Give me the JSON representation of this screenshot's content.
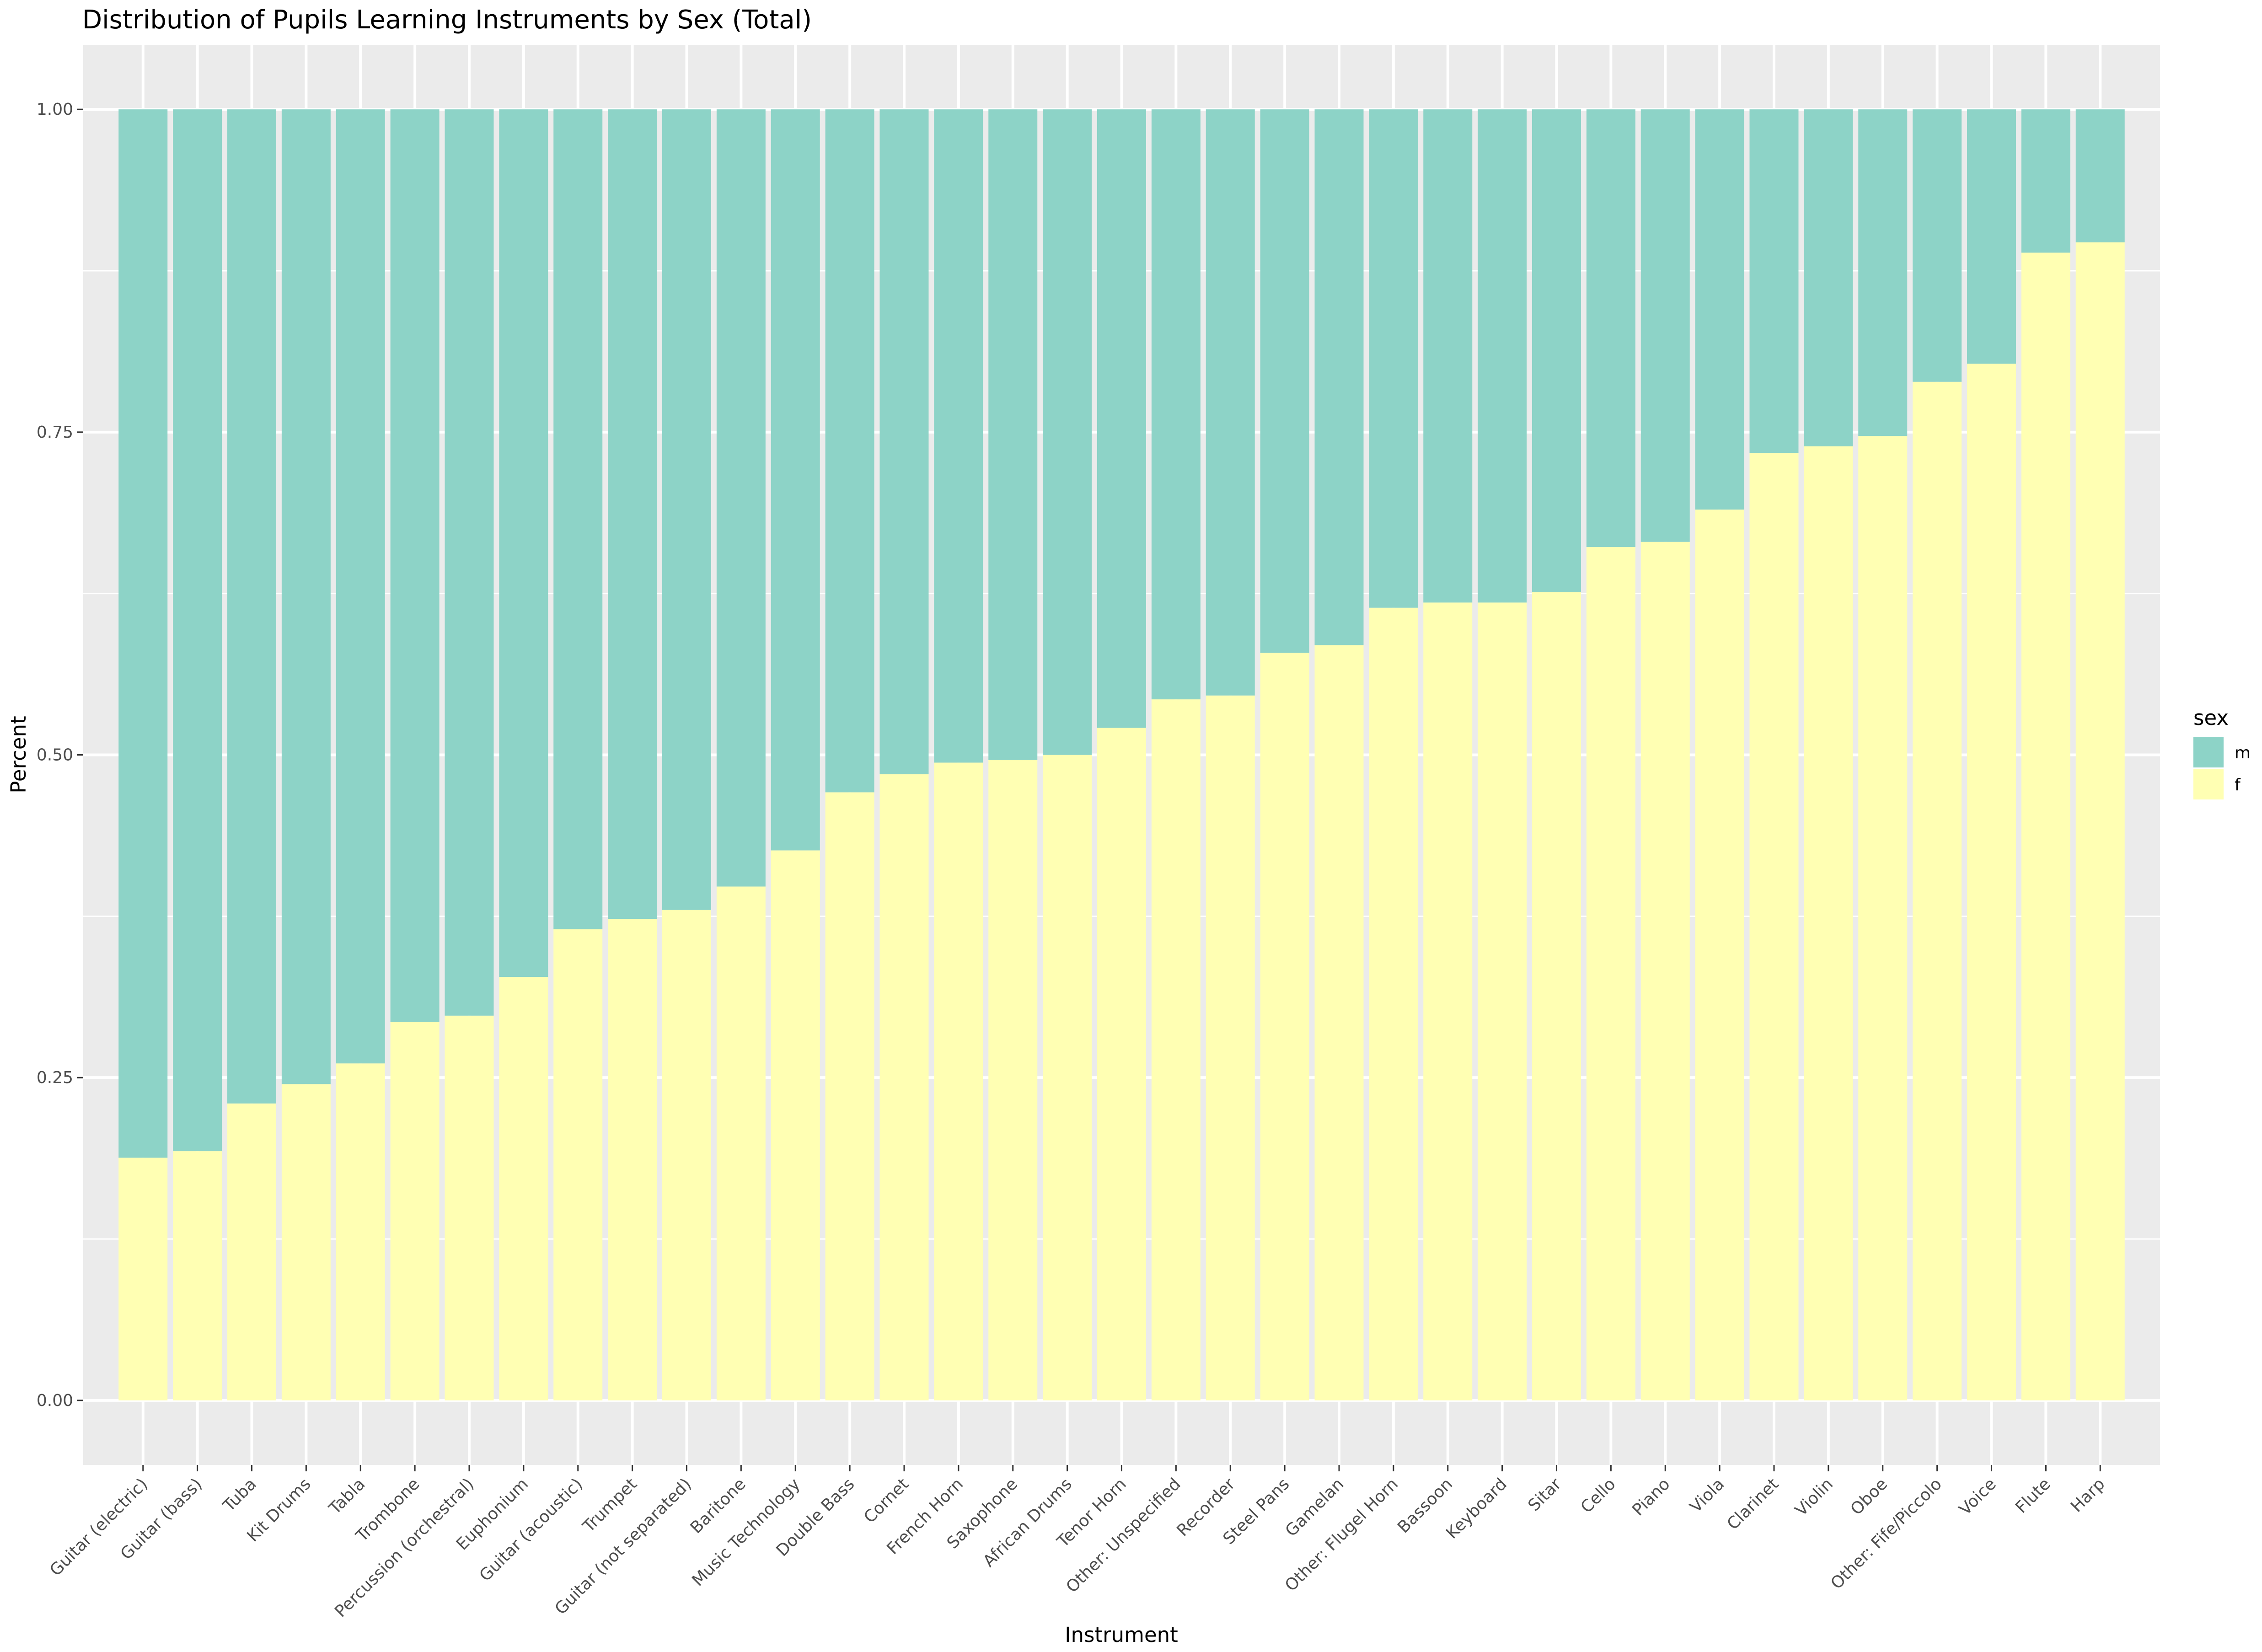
{
  "chart_data": {
    "type": "bar",
    "stacked": true,
    "title": "Distribution of Pupils Learning Instruments by Sex (Total)",
    "xlabel": "Instrument",
    "ylabel": "Percent",
    "ylim": [
      -0.05,
      1.05
    ],
    "yticks": [
      0.0,
      0.25,
      0.5,
      0.75,
      1.0
    ],
    "ytick_labels": [
      "0.00",
      "0.25",
      "0.50",
      "0.75",
      "1.00"
    ],
    "grid": true,
    "legend": {
      "title": "sex",
      "placement": "right",
      "entries": [
        "m",
        "f"
      ]
    },
    "colors": {
      "m": "#8dd3c7",
      "f": "#ffffb3",
      "panel": "#ebebeb",
      "grid": "#ffffff"
    },
    "categories": [
      "Guitar (electric)",
      "Guitar (bass)",
      "Tuba",
      "Kit Drums",
      "Tabla",
      "Trombone",
      "Percussion (orchestral)",
      "Euphonium",
      "Guitar (acoustic)",
      "Trumpet",
      "Guitar (not separated)",
      "Baritone",
      "Music Technology",
      "Double Bass",
      "Cornet",
      "French Horn",
      "Saxophone",
      "African Drums",
      "Tenor Horn",
      "Other: Unspecified",
      "Recorder",
      "Steel Pans",
      "Gamelan",
      "Other: Flugel Horn",
      "Bassoon",
      "Keyboard",
      "Sitar",
      "Cello",
      "Piano",
      "Viola",
      "Clarinet",
      "Violin",
      "Oboe",
      "Other: Fife/Piccolo",
      "Voice",
      "Flute",
      "Harp"
    ],
    "series": [
      {
        "name": "f",
        "values": [
          0.188,
          0.193,
          0.23,
          0.245,
          0.261,
          0.293,
          0.298,
          0.328,
          0.365,
          0.373,
          0.38,
          0.398,
          0.426,
          0.471,
          0.485,
          0.494,
          0.496,
          0.5,
          0.521,
          0.543,
          0.546,
          0.579,
          0.585,
          0.614,
          0.618,
          0.618,
          0.626,
          0.661,
          0.665,
          0.69,
          0.734,
          0.739,
          0.747,
          0.789,
          0.803,
          0.889,
          0.897
        ]
      },
      {
        "name": "m",
        "values": [
          0.812,
          0.807,
          0.77,
          0.755,
          0.739,
          0.707,
          0.702,
          0.672,
          0.635,
          0.627,
          0.62,
          0.602,
          0.574,
          0.529,
          0.515,
          0.506,
          0.504,
          0.5,
          0.479,
          0.457,
          0.454,
          0.421,
          0.415,
          0.386,
          0.382,
          0.382,
          0.374,
          0.339,
          0.335,
          0.31,
          0.266,
          0.261,
          0.253,
          0.211,
          0.197,
          0.111,
          0.103
        ]
      }
    ]
  }
}
